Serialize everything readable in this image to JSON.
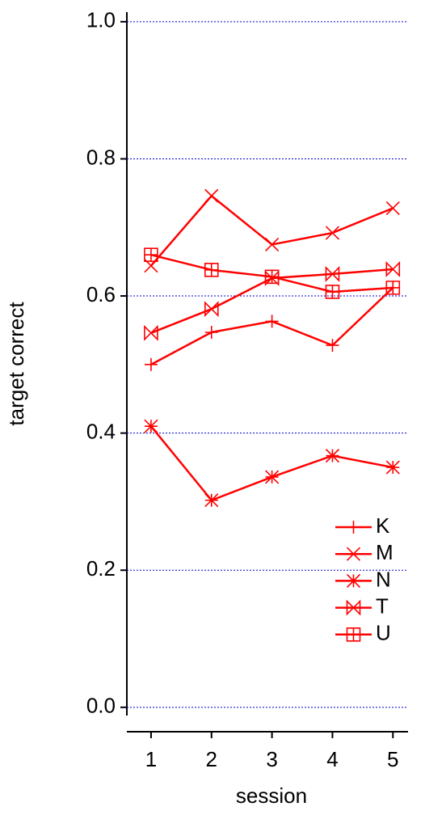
{
  "chart_data": {
    "type": "line",
    "x_label": "session",
    "y_label": "target correct",
    "x": [
      1,
      2,
      3,
      4,
      5
    ],
    "series": [
      {
        "name": "K",
        "color": "#ff0000",
        "marker": "plus",
        "values": [
          0.5,
          0.547,
          0.563,
          0.528,
          0.612
        ]
      },
      {
        "name": "M",
        "color": "#ff0000",
        "marker": "cross",
        "values": [
          0.644,
          0.746,
          0.675,
          0.692,
          0.728
        ]
      },
      {
        "name": "N",
        "color": "#ff0000",
        "marker": "asterisk",
        "values": [
          0.41,
          0.302,
          0.336,
          0.367,
          0.35
        ]
      },
      {
        "name": "T",
        "color": "#ff0000",
        "marker": "bowtie",
        "values": [
          0.546,
          0.581,
          0.626,
          0.632,
          0.639
        ]
      },
      {
        "name": "U",
        "color": "#ff0000",
        "marker": "boxplus",
        "values": [
          0.66,
          0.638,
          0.628,
          0.606,
          0.612
        ]
      }
    ],
    "xlim": [
      0.6,
      5.25
    ],
    "xticks": [
      1,
      2,
      3,
      4,
      5
    ],
    "ylim": [
      -0.012,
      1.014
    ],
    "yticks": [
      {
        "value": 0,
        "label": "0.0"
      },
      0.2,
      0.4,
      0.6,
      0.8,
      {
        "value": 1,
        "label": "1.0"
      }
    ],
    "grid": true,
    "grid_color": "#0000cc",
    "legend": "lower right"
  }
}
